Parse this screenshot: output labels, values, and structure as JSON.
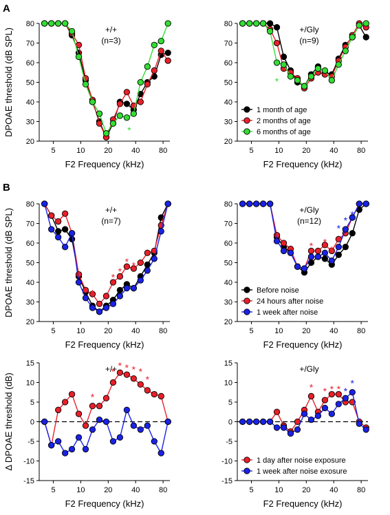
{
  "panel_letters": [
    "A",
    "B"
  ],
  "colors": {
    "black": "#000000",
    "red": "#e8202a",
    "green": "#33dd33",
    "blue": "#1a22e6"
  },
  "chart_data": [
    {
      "type": "line",
      "title": "+/+",
      "subtitle": "(n=3)",
      "xlabel": "F2 Frequency (kHz)",
      "ylabel": "DPOAE threshold (dB SPL)",
      "xscale": "log",
      "xlim": [
        3.5,
        95
      ],
      "ylim": [
        20,
        80
      ],
      "xticks": [
        5,
        10,
        20,
        40,
        80
      ],
      "yticks": [
        20,
        30,
        40,
        50,
        60,
        70,
        80
      ],
      "x": [
        4,
        4.76,
        5.66,
        6.73,
        8,
        9.51,
        11.31,
        13.45,
        16,
        19.03,
        22.63,
        26.91,
        32,
        38.05,
        45.25,
        53.82,
        64,
        76.11,
        90.51
      ],
      "series": [
        {
          "color": "black",
          "values": [
            80,
            80,
            80,
            80,
            74,
            65,
            51,
            40,
            30,
            22,
            29,
            40,
            39,
            36,
            44,
            50,
            53,
            64,
            65
          ]
        },
        {
          "color": "red",
          "values": [
            80,
            80,
            80,
            80,
            75,
            69,
            52,
            41,
            29,
            22,
            31,
            39,
            45,
            38,
            40,
            49,
            56,
            66,
            61
          ]
        },
        {
          "color": "green",
          "values": [
            80,
            80,
            80,
            80,
            76,
            63,
            49,
            40,
            34,
            24,
            29,
            33,
            32,
            34,
            50,
            58,
            69,
            71,
            80
          ]
        }
      ],
      "stars": [
        {
          "x": 34,
          "y": 27,
          "color": "green"
        }
      ],
      "legend": null
    },
    {
      "type": "line",
      "title": "+/Gly",
      "subtitle": "(n=9)",
      "xlabel": "F2 Frequency (kHz)",
      "ylabel": "",
      "xscale": "log",
      "xlim": [
        3.5,
        95
      ],
      "ylim": [
        20,
        80
      ],
      "xticks": [
        5,
        10,
        20,
        40,
        80
      ],
      "yticks": [
        20,
        30,
        40,
        50,
        60,
        70,
        80
      ],
      "x": [
        4,
        4.76,
        5.66,
        6.73,
        8,
        9.51,
        11.31,
        13.45,
        16,
        19.03,
        22.63,
        26.91,
        32,
        38.05,
        45.25,
        53.82,
        64,
        76.11,
        90.51
      ],
      "series": [
        {
          "name": "1 month of age",
          "color": "black",
          "values": [
            80,
            80,
            80,
            80,
            80,
            78,
            63,
            56,
            50,
            48,
            54,
            58,
            55,
            54,
            62,
            69,
            73,
            79,
            73
          ]
        },
        {
          "name": "2 months of age",
          "color": "red",
          "values": [
            80,
            80,
            80,
            80,
            77,
            70,
            57,
            55,
            52,
            47,
            52,
            55,
            54,
            53,
            61,
            68,
            74,
            80,
            78
          ]
        },
        {
          "name": "6 months of age",
          "color": "green",
          "values": [
            80,
            80,
            80,
            80,
            76,
            60,
            59,
            53,
            51,
            48,
            53,
            57,
            56,
            51,
            59,
            66,
            73,
            79,
            80
          ]
        }
      ],
      "stars": [
        {
          "x": 9.5,
          "y": 52,
          "color": "green"
        }
      ],
      "legend": "lower-left"
    },
    {
      "type": "line",
      "title": "+/+",
      "subtitle": "(n=7)",
      "xlabel": "F2 Frequency (kHz)",
      "ylabel": "DPOAE threshold (dB SPL)",
      "xscale": "log",
      "xlim": [
        3.5,
        95
      ],
      "ylim": [
        20,
        80
      ],
      "xticks": [
        5,
        10,
        20,
        40,
        80
      ],
      "yticks": [
        20,
        30,
        40,
        50,
        60,
        70,
        80
      ],
      "x": [
        4,
        4.76,
        5.66,
        6.73,
        8,
        9.51,
        11.31,
        13.45,
        16,
        19.03,
        22.63,
        26.91,
        32,
        38.05,
        45.25,
        53.82,
        64,
        76.11,
        90.51
      ],
      "series": [
        {
          "color": "black",
          "values": [
            80,
            74,
            66,
            67,
            62,
            43,
            35,
            28,
            25,
            28,
            31,
            36,
            39,
            37,
            43,
            49,
            55,
            73,
            80
          ]
        },
        {
          "color": "red",
          "values": [
            80,
            74,
            71,
            75,
            65,
            44,
            36,
            34,
            29,
            33,
            40,
            43,
            48,
            47,
            50,
            55,
            56,
            69,
            80
          ]
        },
        {
          "color": "blue",
          "values": [
            80,
            67,
            63,
            58,
            65,
            40,
            32,
            27,
            25,
            27,
            29,
            33,
            37,
            37,
            41,
            46,
            52,
            66,
            80
          ]
        }
      ],
      "stars": [
        {
          "x": 13.45,
          "y": 36,
          "color": "red"
        },
        {
          "x": 22.63,
          "y": 44,
          "color": "red"
        },
        {
          "x": 26.91,
          "y": 47,
          "color": "red"
        },
        {
          "x": 32,
          "y": 52,
          "color": "red"
        },
        {
          "x": 38.05,
          "y": 50,
          "color": "red"
        }
      ],
      "legend": null
    },
    {
      "type": "line",
      "title": "+/Gly",
      "subtitle": "(n=12)",
      "xlabel": "F2 Frequency (kHz)",
      "ylabel": "",
      "xscale": "log",
      "xlim": [
        3.5,
        95
      ],
      "ylim": [
        20,
        80
      ],
      "xticks": [
        5,
        10,
        20,
        40,
        80
      ],
      "yticks": [
        20,
        30,
        40,
        50,
        60,
        70,
        80
      ],
      "x": [
        4,
        4.76,
        5.66,
        6.73,
        8,
        9.51,
        11.31,
        13.45,
        16,
        19.03,
        22.63,
        26.91,
        32,
        38.05,
        45.25,
        53.82,
        64,
        76.11,
        90.51
      ],
      "series": [
        {
          "name": "Before noise",
          "color": "black",
          "values": [
            80,
            80,
            80,
            80,
            80,
            63,
            58,
            55,
            48,
            45,
            50,
            53,
            52,
            49,
            54,
            58,
            65,
            77,
            80
          ]
        },
        {
          "name": "24 hours after noise",
          "color": "red",
          "values": [
            80,
            80,
            80,
            80,
            80,
            64,
            60,
            57,
            48,
            47,
            56,
            56,
            59,
            56,
            62,
            65,
            73,
            80,
            80
          ]
        },
        {
          "name": "1 week after noise",
          "color": "blue",
          "values": [
            80,
            80,
            80,
            80,
            80,
            61,
            56,
            55,
            48,
            47,
            53,
            53,
            55,
            51,
            58,
            67,
            73,
            80,
            80
          ]
        }
      ],
      "stars": [
        {
          "x": 22.63,
          "y": 60,
          "color": "red"
        },
        {
          "x": 32,
          "y": 62,
          "color": "red"
        },
        {
          "x": 38.05,
          "y": 58,
          "color": "red"
        },
        {
          "x": 45.25,
          "y": 69,
          "color": "blue"
        },
        {
          "x": 53.82,
          "y": 73,
          "color": "blue"
        },
        {
          "x": 64,
          "y": 76,
          "color": "blue"
        }
      ],
      "legend": "lower-left"
    },
    {
      "type": "line",
      "title": "+/+",
      "subtitle": "",
      "xlabel": "F2 Frequency (kHz)",
      "ylabel": "Δ DPOAE threshold (dB)",
      "xscale": "log",
      "xlim": [
        3.5,
        95
      ],
      "ylim": [
        -15,
        15
      ],
      "xticks": [
        5,
        10,
        20,
        40,
        80
      ],
      "yticks": [
        -15,
        -10,
        -5,
        0,
        5,
        10,
        15
      ],
      "zero_line": true,
      "x": [
        4,
        4.76,
        5.66,
        6.73,
        8,
        9.51,
        11.31,
        13.45,
        16,
        19.03,
        22.63,
        26.91,
        32,
        38.05,
        45.25,
        53.82,
        64,
        76.11,
        90.51
      ],
      "series": [
        {
          "color": "red",
          "values": [
            0,
            -6,
            3,
            5,
            7,
            2,
            -1,
            4,
            4,
            6,
            10,
            12.5,
            12,
            11,
            9.5,
            8,
            7,
            6.5,
            0
          ]
        },
        {
          "color": "blue",
          "values": [
            0,
            -6,
            -5,
            -8,
            -7,
            -4,
            -7,
            -2,
            0.5,
            0,
            -5,
            -4,
            3,
            -1,
            -2,
            -1,
            -5,
            -8,
            0
          ]
        }
      ],
      "stars": [
        {
          "x": 13.45,
          "y": 7,
          "color": "red"
        },
        {
          "x": 22.63,
          "y": 13.5,
          "color": "red"
        },
        {
          "x": 26.91,
          "y": 15,
          "color": "red"
        },
        {
          "x": 32,
          "y": 14.5,
          "color": "red"
        },
        {
          "x": 38.05,
          "y": 14,
          "color": "red"
        },
        {
          "x": 45.25,
          "y": 13.5,
          "color": "red"
        },
        {
          "x": 53.82,
          "y": 11.5,
          "color": "red"
        }
      ],
      "legend": null
    },
    {
      "type": "line",
      "title": "+/Gly",
      "subtitle": "",
      "xlabel": "F2 Frequency (kHz)",
      "ylabel": "",
      "xscale": "log",
      "xlim": [
        3.5,
        95
      ],
      "ylim": [
        -15,
        15
      ],
      "xticks": [
        5,
        10,
        20,
        40,
        80
      ],
      "yticks": [
        -15,
        -10,
        -5,
        0,
        5,
        10,
        15
      ],
      "zero_line": true,
      "x": [
        4,
        4.76,
        5.66,
        6.73,
        8,
        9.51,
        11.31,
        13.45,
        16,
        19.03,
        22.63,
        26.91,
        32,
        38.05,
        45.25,
        53.82,
        64,
        76.11,
        90.51
      ],
      "series": [
        {
          "name": "1 day after noise exposure",
          "color": "red",
          "values": [
            0,
            0,
            0,
            0,
            0,
            2.5,
            -1,
            -2.5,
            0,
            3,
            6.5,
            2.5,
            5.5,
            7,
            7,
            5,
            5,
            0,
            -1.5
          ]
        },
        {
          "name": "1 week after noise exosure",
          "color": "blue",
          "values": [
            0,
            0,
            0,
            0,
            0,
            -1.5,
            -1.5,
            -3,
            -2,
            2,
            0.5,
            1.5,
            3.5,
            2,
            4.5,
            6,
            7.5,
            -0.5,
            -2
          ]
        }
      ],
      "stars": [
        {
          "x": 22.63,
          "y": 9.5,
          "color": "red"
        },
        {
          "x": 32,
          "y": 8.5,
          "color": "red"
        },
        {
          "x": 38.05,
          "y": 9,
          "color": "red"
        },
        {
          "x": 45.25,
          "y": 9,
          "color": "red"
        },
        {
          "x": 53.82,
          "y": 8.5,
          "color": "blue"
        },
        {
          "x": 64,
          "y": 10.5,
          "color": "blue"
        }
      ],
      "legend": "lower-left"
    }
  ]
}
